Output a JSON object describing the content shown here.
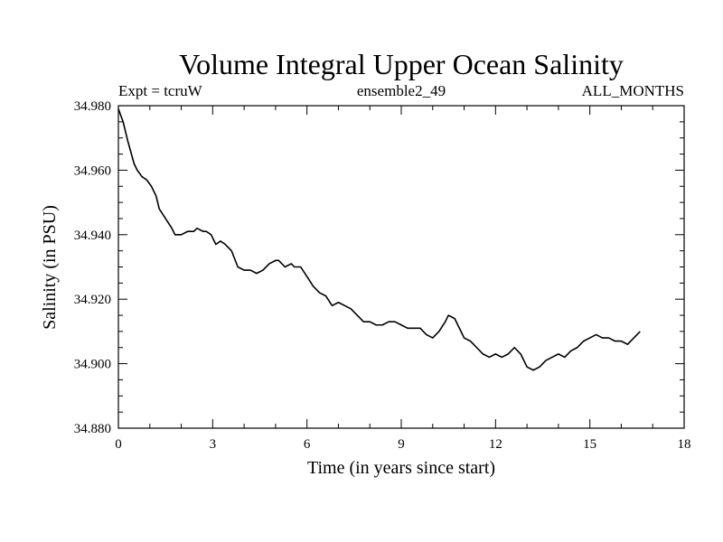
{
  "chart_data": {
    "type": "line",
    "title": "Volume Integral Upper Ocean Salinity",
    "subtitle_left": "Expt = tcruW",
    "subtitle_center": "ensemble2_49",
    "subtitle_right": "ALL_MONTHS",
    "xlabel": "Time (in years since start)",
    "ylabel": "Salinity (in PSU)",
    "xlim": [
      0,
      18
    ],
    "ylim": [
      34.88,
      34.98
    ],
    "xticks": [
      0,
      3,
      6,
      9,
      12,
      15,
      18
    ],
    "xtick_labels": [
      "0",
      "3",
      "6",
      "9",
      "12",
      "15",
      "18"
    ],
    "yticks": [
      34.88,
      34.9,
      34.92,
      34.94,
      34.96,
      34.98
    ],
    "ytick_labels": [
      "34.880",
      "34.900",
      "34.920",
      "34.940",
      "34.960",
      "34.980"
    ],
    "colors": {
      "line": "#000000",
      "axes": "#000000",
      "background": "#ffffff"
    },
    "series": [
      {
        "name": "salinity",
        "x": [
          0.0,
          0.15,
          0.3,
          0.5,
          0.6,
          0.75,
          0.9,
          1.05,
          1.2,
          1.3,
          1.5,
          1.7,
          1.8,
          2.0,
          2.2,
          2.4,
          2.5,
          2.7,
          2.8,
          2.95,
          3.1,
          3.25,
          3.4,
          3.6,
          3.8,
          4.0,
          4.2,
          4.4,
          4.6,
          4.8,
          5.0,
          5.1,
          5.3,
          5.5,
          5.6,
          5.8,
          6.0,
          6.2,
          6.4,
          6.6,
          6.8,
          7.0,
          7.2,
          7.4,
          7.6,
          7.8,
          8.0,
          8.2,
          8.4,
          8.6,
          8.8,
          9.0,
          9.2,
          9.4,
          9.6,
          9.8,
          10.0,
          10.2,
          10.4,
          10.5,
          10.7,
          10.9,
          11.0,
          11.2,
          11.4,
          11.6,
          11.8,
          12.0,
          12.2,
          12.4,
          12.6,
          12.8,
          13.0,
          13.2,
          13.4,
          13.6,
          13.8,
          14.0,
          14.2,
          14.4,
          14.6,
          14.8,
          15.0,
          15.2,
          15.4,
          15.6,
          15.8,
          16.0,
          16.2,
          16.4,
          16.6
        ],
        "values": [
          34.979,
          34.975,
          34.969,
          34.962,
          34.96,
          34.958,
          34.957,
          34.955,
          34.952,
          34.948,
          34.945,
          34.942,
          34.94,
          34.94,
          34.941,
          34.941,
          34.942,
          34.941,
          34.941,
          34.94,
          34.937,
          34.938,
          34.937,
          34.935,
          34.93,
          34.929,
          34.929,
          34.928,
          34.929,
          34.931,
          34.932,
          34.932,
          34.93,
          34.931,
          34.93,
          34.93,
          34.927,
          34.924,
          34.922,
          34.921,
          34.918,
          34.919,
          34.918,
          34.917,
          34.915,
          34.913,
          34.913,
          34.912,
          34.912,
          34.913,
          34.913,
          34.912,
          34.911,
          34.911,
          34.911,
          34.909,
          34.908,
          34.91,
          34.913,
          34.915,
          34.914,
          34.91,
          34.908,
          34.907,
          34.905,
          34.903,
          34.902,
          34.903,
          34.902,
          34.903,
          34.905,
          34.903,
          34.899,
          34.898,
          34.899,
          34.901,
          34.902,
          34.903,
          34.902,
          34.904,
          34.905,
          34.907,
          34.908,
          34.909,
          34.908,
          34.908,
          34.907,
          34.907,
          34.906,
          34.908,
          34.91
        ]
      }
    ]
  }
}
